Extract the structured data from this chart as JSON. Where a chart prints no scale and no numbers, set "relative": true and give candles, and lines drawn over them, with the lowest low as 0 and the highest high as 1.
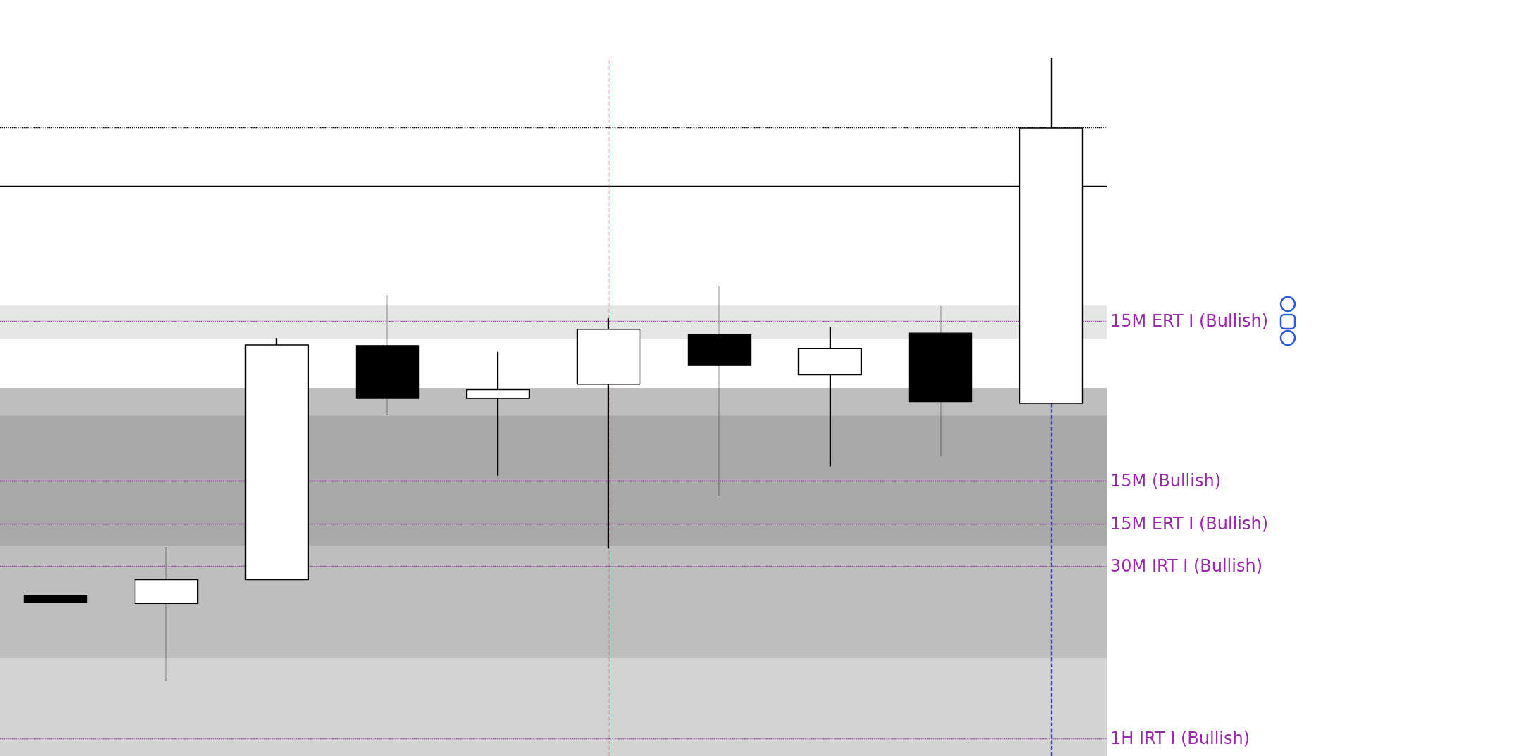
{
  "chart_data": {
    "type": "candlestick",
    "relative": true,
    "categories": [
      null,
      null,
      null,
      null,
      null,
      null,
      null,
      null,
      null,
      null
    ],
    "ohlc": [
      [
        0.137,
        0.137,
        0.126,
        0.126
      ],
      [
        0.124,
        0.215,
        0,
        0.162
      ],
      [
        0.162,
        0.55,
        0.162,
        0.539
      ],
      [
        0.538,
        0.619,
        0.426,
        0.453
      ],
      [
        0.453,
        0.528,
        0.329,
        0.467
      ],
      [
        0.476,
        0.582,
        0.212,
        0.564
      ],
      [
        0.555,
        0.634,
        0.296,
        0.506
      ],
      [
        0.491,
        0.568,
        0.344,
        0.533
      ],
      [
        0.558,
        0.601,
        0.36,
        0.448
      ],
      [
        0.445,
        1,
        0.445,
        0.887
      ]
    ],
    "colors": [
      "#000000",
      "#ffffff",
      "#ffffff",
      "#000000",
      "#ffffff",
      "#ffffff",
      "#000000",
      "#ffffff",
      "#000000",
      "#ffffff"
    ],
    "ref_lines": [
      {
        "axis": "y",
        "value": 0.888,
        "color": "#000000",
        "line_style": "dotted"
      },
      {
        "axis": "y",
        "value": 0.794,
        "color": "#000000",
        "line_style": "solid"
      },
      {
        "axis": "y",
        "value": 0.577,
        "label": "15M ERT I (Bullish)",
        "color": "#9c27b0",
        "line_style": "dotted"
      },
      {
        "axis": "y",
        "value": 0.321,
        "label": "15M (Bullish)",
        "color": "#9c27b0",
        "line_style": "dotted"
      },
      {
        "axis": "y",
        "value": 0.252,
        "label": "15M ERT I (Bullish)",
        "color": "#9c27b0",
        "line_style": "dotted"
      },
      {
        "axis": "y",
        "value": 0.184,
        "label": "30M IRT I (Bullish)",
        "color": "#9c27b0",
        "line_style": "dotted"
      },
      {
        "axis": "y",
        "value": -0.093,
        "label": "1H IRT I (Bullish)",
        "color": "#9c27b0",
        "line_style": "dotted"
      }
    ],
    "bands": [
      {
        "axis": "y",
        "from": 0.549,
        "to": 0.602,
        "color": "#e6e6e6"
      },
      {
        "axis": "y",
        "from": 0.036,
        "to": 0.47,
        "color": "#bebebe"
      },
      {
        "axis": "y",
        "from": 0.217,
        "to": 0.425,
        "color": "#a9a9a9"
      },
      {
        "axis": "y",
        "from": -0.121,
        "to": 0.036,
        "color": "#d3d3d3"
      }
    ]
  }
}
